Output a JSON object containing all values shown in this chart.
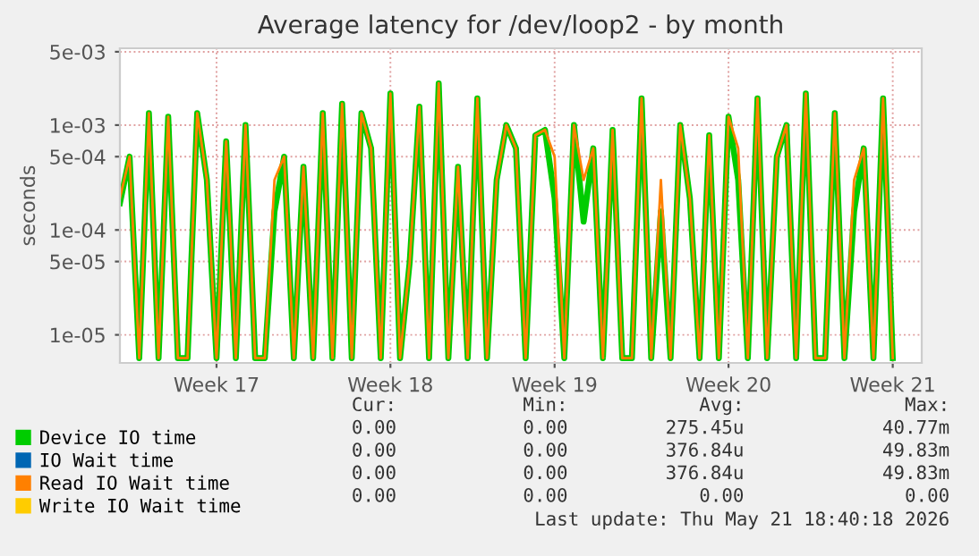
{
  "chart_data": {
    "type": "line",
    "title": "Average latency for /dev/loop2 - by month",
    "ylabel": "seconds",
    "log": "y",
    "grid": true,
    "legend": "bottom",
    "categories": [
      null,
      null,
      null,
      null,
      null,
      null,
      null,
      null,
      null,
      null,
      "Week 17",
      null,
      null,
      null,
      null,
      null,
      null,
      null,
      null,
      null,
      null,
      null,
      null,
      null,
      null,
      null,
      null,
      null,
      "Week 18",
      null,
      null,
      null,
      null,
      null,
      null,
      null,
      null,
      null,
      null,
      null,
      null,
      null,
      null,
      null,
      null,
      "Week 19",
      null,
      null,
      null,
      null,
      null,
      null,
      null,
      null,
      null,
      null,
      null,
      null,
      null,
      null,
      null,
      null,
      null,
      "Week 20",
      null,
      null,
      null,
      null,
      null,
      null,
      null,
      null,
      null,
      null,
      null,
      null,
      null,
      null,
      null,
      null,
      "Week 21"
    ],
    "ylim": [
      5.4e-06,
      0.0054
    ],
    "yticks": [
      {
        "value": 1e-05,
        "label": "1e-05"
      },
      {
        "value": 5e-05,
        "label": "5e-05"
      },
      {
        "value": 0.0001,
        "label": "1e-04"
      },
      {
        "value": 0.0005,
        "label": "5e-04"
      },
      {
        "value": 0.001,
        "label": "1e-03"
      },
      {
        "value": 0.005,
        "label": "5e-03"
      }
    ],
    "series": [
      {
        "name": "Device IO time",
        "color": "#00cc00",
        "values": [
          0.00018,
          0.0005,
          6e-06,
          0.0013,
          6e-06,
          0.0012,
          6e-06,
          6e-06,
          0.0013,
          0.0003,
          6e-06,
          0.0007,
          6e-06,
          0.001,
          6e-06,
          6e-06,
          0.00015,
          0.0005,
          6e-06,
          0.0004,
          6e-06,
          0.0013,
          6e-06,
          0.0016,
          6e-06,
          0.0013,
          0.0006,
          6e-06,
          0.002,
          6e-06,
          5e-05,
          0.0015,
          6e-06,
          0.0025,
          6e-06,
          0.0004,
          6e-06,
          0.0018,
          6e-06,
          0.0003,
          0.001,
          0.0006,
          6e-06,
          0.0008,
          0.0009,
          0.0002,
          6e-06,
          0.001,
          0.00012,
          0.0006,
          6e-06,
          0.0009,
          6e-06,
          6e-06,
          0.0018,
          6e-06,
          0.00015,
          6e-06,
          0.001,
          0.0002,
          6e-06,
          0.0008,
          6e-06,
          0.0012,
          0.0003,
          6e-06,
          0.0018,
          6e-06,
          0.0005,
          0.001,
          6e-06,
          0.002,
          6e-06,
          6e-06,
          0.0013,
          6e-06,
          0.00015,
          0.0006,
          6e-06,
          0.0018,
          6e-06
        ]
      },
      {
        "name": "IO Wait time",
        "color": "#0066b3",
        "values": [
          null,
          null,
          null,
          null,
          null,
          null,
          null,
          null,
          null,
          null,
          null,
          null,
          null,
          null,
          null,
          null,
          null,
          null,
          null,
          null,
          null,
          null,
          null,
          null,
          null,
          null,
          null,
          null,
          null,
          null,
          null,
          null,
          null,
          null,
          null,
          null,
          null,
          null,
          null,
          null,
          null,
          null,
          null,
          null,
          null,
          null,
          null,
          null,
          null,
          null,
          null,
          null,
          null,
          null,
          null,
          null,
          null,
          null,
          null,
          null,
          null,
          null,
          null,
          null,
          null,
          null,
          null,
          null,
          null,
          null,
          null,
          null,
          null,
          null,
          null,
          null,
          null,
          null,
          null,
          null,
          null
        ]
      },
      {
        "name": "Read IO Wait time",
        "color": "#ff8000",
        "values": [
          0.0002,
          0.0005,
          6e-06,
          0.0013,
          6e-06,
          0.0012,
          6e-06,
          6e-06,
          0.0013,
          0.0003,
          6e-06,
          0.0007,
          6e-06,
          0.001,
          6e-06,
          6e-06,
          0.0003,
          0.0005,
          6e-06,
          0.0004,
          6e-06,
          0.0013,
          6e-06,
          0.0016,
          6e-06,
          0.0013,
          0.0006,
          6e-06,
          0.002,
          6e-06,
          5e-05,
          0.0015,
          6e-06,
          0.0025,
          6e-06,
          0.0004,
          6e-06,
          0.0018,
          6e-06,
          0.0003,
          0.001,
          0.0006,
          6e-06,
          0.0008,
          0.0009,
          0.0005,
          6e-06,
          0.001,
          0.0003,
          0.0006,
          6e-06,
          0.0009,
          6e-06,
          6e-06,
          0.0018,
          6e-06,
          0.0003,
          6e-06,
          0.001,
          0.0002,
          6e-06,
          0.0008,
          6e-06,
          0.0012,
          0.0006,
          6e-06,
          0.0018,
          6e-06,
          0.0005,
          0.001,
          6e-06,
          0.002,
          6e-06,
          6e-06,
          0.0013,
          6e-06,
          0.0003,
          0.0006,
          6e-06,
          0.0018,
          6e-06
        ]
      },
      {
        "name": "Write IO Wait time",
        "color": "#ffcc00",
        "values": [
          null,
          null,
          null,
          null,
          null,
          null,
          null,
          null,
          null,
          null,
          null,
          null,
          null,
          null,
          null,
          null,
          null,
          null,
          null,
          null,
          null,
          null,
          null,
          null,
          null,
          null,
          null,
          null,
          null,
          null,
          null,
          null,
          null,
          null,
          null,
          null,
          null,
          null,
          null,
          null,
          null,
          null,
          null,
          null,
          null,
          null,
          null,
          null,
          null,
          null,
          null,
          null,
          null,
          null,
          null,
          null,
          null,
          null,
          null,
          null,
          null,
          null,
          null,
          null,
          null,
          null,
          null,
          null,
          null,
          null,
          null,
          null,
          null,
          null,
          null,
          null,
          null,
          null,
          null,
          null,
          null
        ]
      }
    ],
    "annotations": [
      "Cur:",
      "Min:",
      "Avg:",
      "Max:",
      "0.00",
      "0.00",
      "275.45u",
      "40.77m",
      "0.00",
      "0.00",
      "376.84u",
      "49.83m",
      "0.00",
      "0.00",
      "376.84u",
      "49.83m",
      "0.00",
      "0.00",
      "0.00",
      "0.00",
      "Last update: Thu May 21 18:40:18 2026"
    ]
  }
}
